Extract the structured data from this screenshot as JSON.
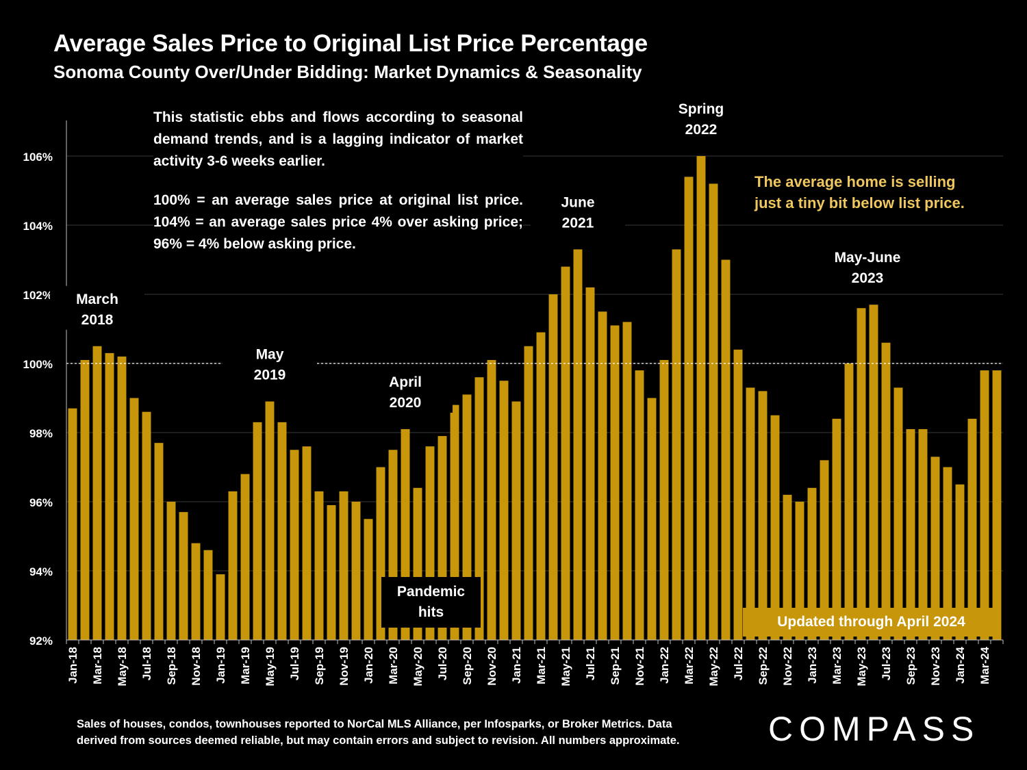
{
  "header": {
    "title": "Average Sales Price to Original List Price Percentage",
    "subtitle": "Sonoma County Over/Under Bidding: Market Dynamics & Seasonality"
  },
  "notes": {
    "line1": "This statistic ebbs and flows according to seasonal demand trends, and is a lagging indicator of market activity 3-6 weeks earlier.",
    "line2": "100% = an average sales price at original list price. 104% = an average sales price 4% over asking price; 96% = 4% below asking price."
  },
  "callout": {
    "line1": "The average home is selling",
    "line2": "just a tiny bit below list price."
  },
  "boxes": {
    "pandemic_line1": "Pandemic",
    "pandemic_line2": "hits",
    "updated": "Updated through April 2024"
  },
  "footer": {
    "line1": "Sales of houses, condos, townhouses reported to NorCal MLS Alliance, per Infosparks, or Broker Metrics. Data",
    "line2": "derived from sources deemed reliable, but may contain errors and subject to revision. All numbers approximate.",
    "logo": "COMPASS"
  },
  "colors": {
    "bar": "#c8960a",
    "callout": "#f0c75e",
    "background": "#000000"
  },
  "chart_data": {
    "type": "bar",
    "title": "Average Sales Price to Original List Price Percentage",
    "ylim": [
      92,
      107
    ],
    "yticks": [
      92,
      94,
      96,
      98,
      100,
      102,
      104,
      106
    ],
    "ytick_labels": [
      "92%",
      "94%",
      "96%",
      "98%",
      "100%",
      "102%",
      "104%",
      "106%"
    ],
    "reference_line": 100,
    "categories": [
      "Jan-18",
      "Feb-18",
      "Mar-18",
      "Apr-18",
      "May-18",
      "Jun-18",
      "Jul-18",
      "Aug-18",
      "Sep-18",
      "Oct-18",
      "Nov-18",
      "Dec-18",
      "Jan-19",
      "Feb-19",
      "Mar-19",
      "Apr-19",
      "May-19",
      "Jun-19",
      "Jul-19",
      "Aug-19",
      "Sep-19",
      "Oct-19",
      "Nov-19",
      "Dec-19",
      "Jan-20",
      "Feb-20",
      "Mar-20",
      "Apr-20",
      "May-20",
      "Jun-20",
      "Jul-20",
      "Aug-20",
      "Sep-20",
      "Oct-20",
      "Nov-20",
      "Dec-20",
      "Jan-21",
      "Feb-21",
      "Mar-21",
      "Apr-21",
      "May-21",
      "Jun-21",
      "Jul-21",
      "Aug-21",
      "Sep-21",
      "Oct-21",
      "Nov-21",
      "Dec-21",
      "Jan-22",
      "Feb-22",
      "Mar-22",
      "Apr-22",
      "May-22",
      "Jun-22",
      "Jul-22",
      "Aug-22",
      "Sep-22",
      "Oct-22",
      "Nov-22",
      "Dec-22",
      "Jan-23",
      "Feb-23",
      "Mar-23",
      "Apr-23",
      "May-23",
      "Jun-23",
      "Jul-23",
      "Aug-23",
      "Sep-23",
      "Oct-23",
      "Nov-23",
      "Dec-23",
      "Jan-24",
      "Feb-24",
      "Mar-24",
      "Apr-24"
    ],
    "xtick_labels": [
      "Jan-18",
      "",
      "Mar-18",
      "",
      "May-18",
      "",
      "Jul-18",
      "",
      "Sep-18",
      "",
      "Nov-18",
      "",
      "Jan-19",
      "",
      "Mar-19",
      "",
      "May-19",
      "",
      "Jul-19",
      "",
      "Sep-19",
      "",
      "Nov-19",
      "",
      "Jan-20",
      "",
      "Mar-20",
      "",
      "May-20",
      "",
      "Jul-20",
      "",
      "Sep-20",
      "",
      "Nov-20",
      "",
      "Jan-21",
      "",
      "Mar-21",
      "",
      "May-21",
      "",
      "Jul-21",
      "",
      "Sep-21",
      "",
      "Nov-21",
      "",
      "Jan-22",
      "",
      "Mar-22",
      "",
      "May-22",
      "",
      "Jul-22",
      "",
      "Sep-22",
      "",
      "Nov-22",
      "",
      "Jan-23",
      "",
      "Mar-23",
      "",
      "May-23",
      "",
      "Jul-23",
      "",
      "Sep-23",
      "",
      "Nov-23",
      "",
      "Jan-24",
      "",
      "Mar-24",
      ""
    ],
    "values": [
      98.7,
      100.1,
      100.5,
      100.3,
      100.2,
      99.0,
      98.6,
      97.7,
      96.0,
      95.7,
      94.8,
      94.6,
      93.9,
      96.3,
      96.8,
      98.3,
      98.9,
      98.3,
      97.5,
      97.6,
      96.3,
      95.9,
      96.3,
      96.0,
      95.5,
      97.0,
      97.5,
      98.1,
      96.4,
      97.6,
      97.9,
      98.8,
      99.1,
      99.6,
      100.1,
      99.5,
      98.9,
      100.5,
      100.9,
      102.0,
      102.8,
      103.3,
      102.2,
      101.5,
      101.1,
      101.2,
      99.8,
      99.0,
      100.1,
      103.3,
      105.4,
      106.0,
      105.2,
      103.0,
      100.4,
      99.3,
      99.2,
      98.5,
      96.2,
      96.0,
      96.4,
      97.2,
      98.4,
      100.0,
      101.6,
      101.7,
      100.6,
      99.3,
      98.1,
      98.1,
      97.3,
      97.0,
      96.5,
      98.4,
      99.8,
      99.8
    ],
    "annotations": [
      {
        "line1": "March",
        "line2": "2018",
        "index": 2
      },
      {
        "line1": "May",
        "line2": "2019",
        "index": 16
      },
      {
        "line1": "April",
        "line2": "2020",
        "index": 27
      },
      {
        "line1": "June",
        "line2": "2021",
        "index": 41
      },
      {
        "line1": "Spring",
        "line2": "2022",
        "index": 51
      },
      {
        "line1": "May-June",
        "line2": "2023",
        "index": 64.5
      }
    ]
  }
}
